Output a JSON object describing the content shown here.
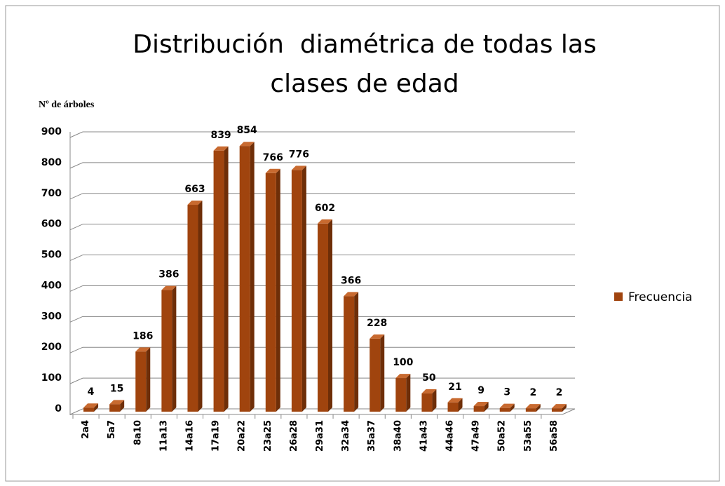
{
  "chart_data": {
    "type": "bar3d",
    "title": "Distribución  diamétrica de todas las clases de edad",
    "y_label": "Nº de árboles",
    "categories": [
      "2a4",
      "5a7",
      "8a10",
      "11a13",
      "14a16",
      "17a19",
      "20a22",
      "23a25",
      "26a28",
      "29a31",
      "32a34",
      "35a37",
      "38a40",
      "41a43",
      "44a46",
      "47a49",
      "50a52",
      "53a55",
      "56a58"
    ],
    "series": [
      {
        "name": "Frecuencia",
        "color": "#a0440e",
        "values": [
          4,
          15,
          186,
          386,
          663,
          839,
          854,
          766,
          776,
          602,
          366,
          228,
          100,
          50,
          21,
          9,
          3,
          2,
          2
        ]
      }
    ],
    "ylim": [
      0,
      900
    ],
    "yticks": [
      0,
      100,
      200,
      300,
      400,
      500,
      600,
      700,
      800,
      900
    ],
    "grid": true,
    "legend": "right"
  }
}
